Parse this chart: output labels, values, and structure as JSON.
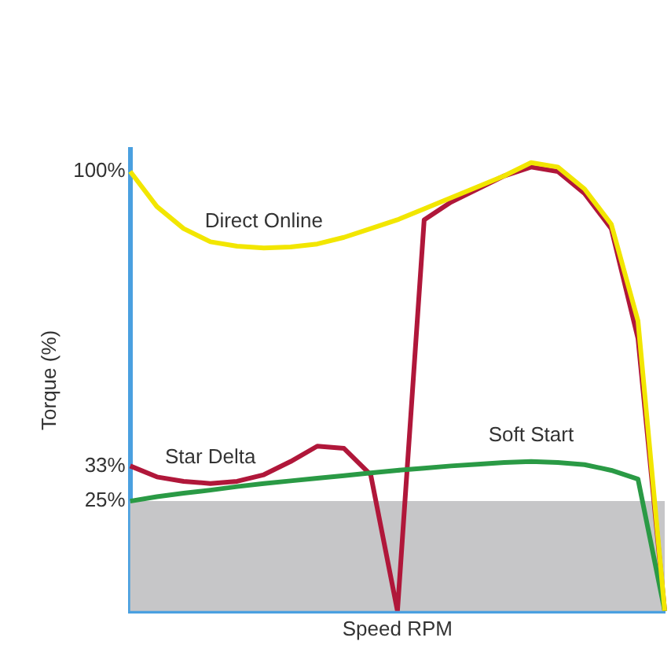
{
  "chart_data": {
    "type": "line",
    "xlabel": "Speed RPM",
    "ylabel": "Torque (%)",
    "ylim": [
      0,
      105
    ],
    "categories": [
      null,
      null,
      null,
      null,
      null,
      null,
      null,
      null,
      null,
      null,
      null,
      null,
      null,
      null,
      null,
      null,
      null,
      null,
      null,
      null,
      null
    ],
    "yticks": [
      {
        "value": 25,
        "label": "25%"
      },
      {
        "value": 33,
        "label": "33%"
      },
      {
        "value": 100,
        "label": "100%"
      }
    ],
    "tick_labels": "y",
    "grid": false,
    "legend": false,
    "marker": "none",
    "line_style": "solid",
    "bands": [
      {
        "axis": "y",
        "from": 0,
        "to": 25,
        "color": "#c6c6c8"
      }
    ],
    "series": [
      {
        "name": "Direct Online",
        "color": "#f2e600",
        "values": [
          100,
          92,
          87,
          84,
          83,
          82.6,
          82.8,
          83.5,
          85,
          87,
          89,
          91.5,
          94,
          96.5,
          99,
          102,
          101,
          96,
          88,
          66,
          0
        ]
      },
      {
        "name": "Soft Start",
        "color": "#2a9a45",
        "values": [
          25,
          26,
          26.8,
          27.5,
          28.3,
          29,
          29.6,
          30.2,
          30.8,
          31.4,
          32,
          32.5,
          33,
          33.4,
          33.8,
          34,
          33.8,
          33.3,
          32,
          30,
          0
        ]
      },
      {
        "name": "Star Delta",
        "color": "#b0173a",
        "values": [
          33,
          30.5,
          29.5,
          29,
          29.5,
          31,
          34,
          37.5,
          37,
          31,
          0,
          89,
          93,
          96,
          99,
          101,
          100,
          95,
          87,
          62,
          0
        ]
      }
    ]
  }
}
